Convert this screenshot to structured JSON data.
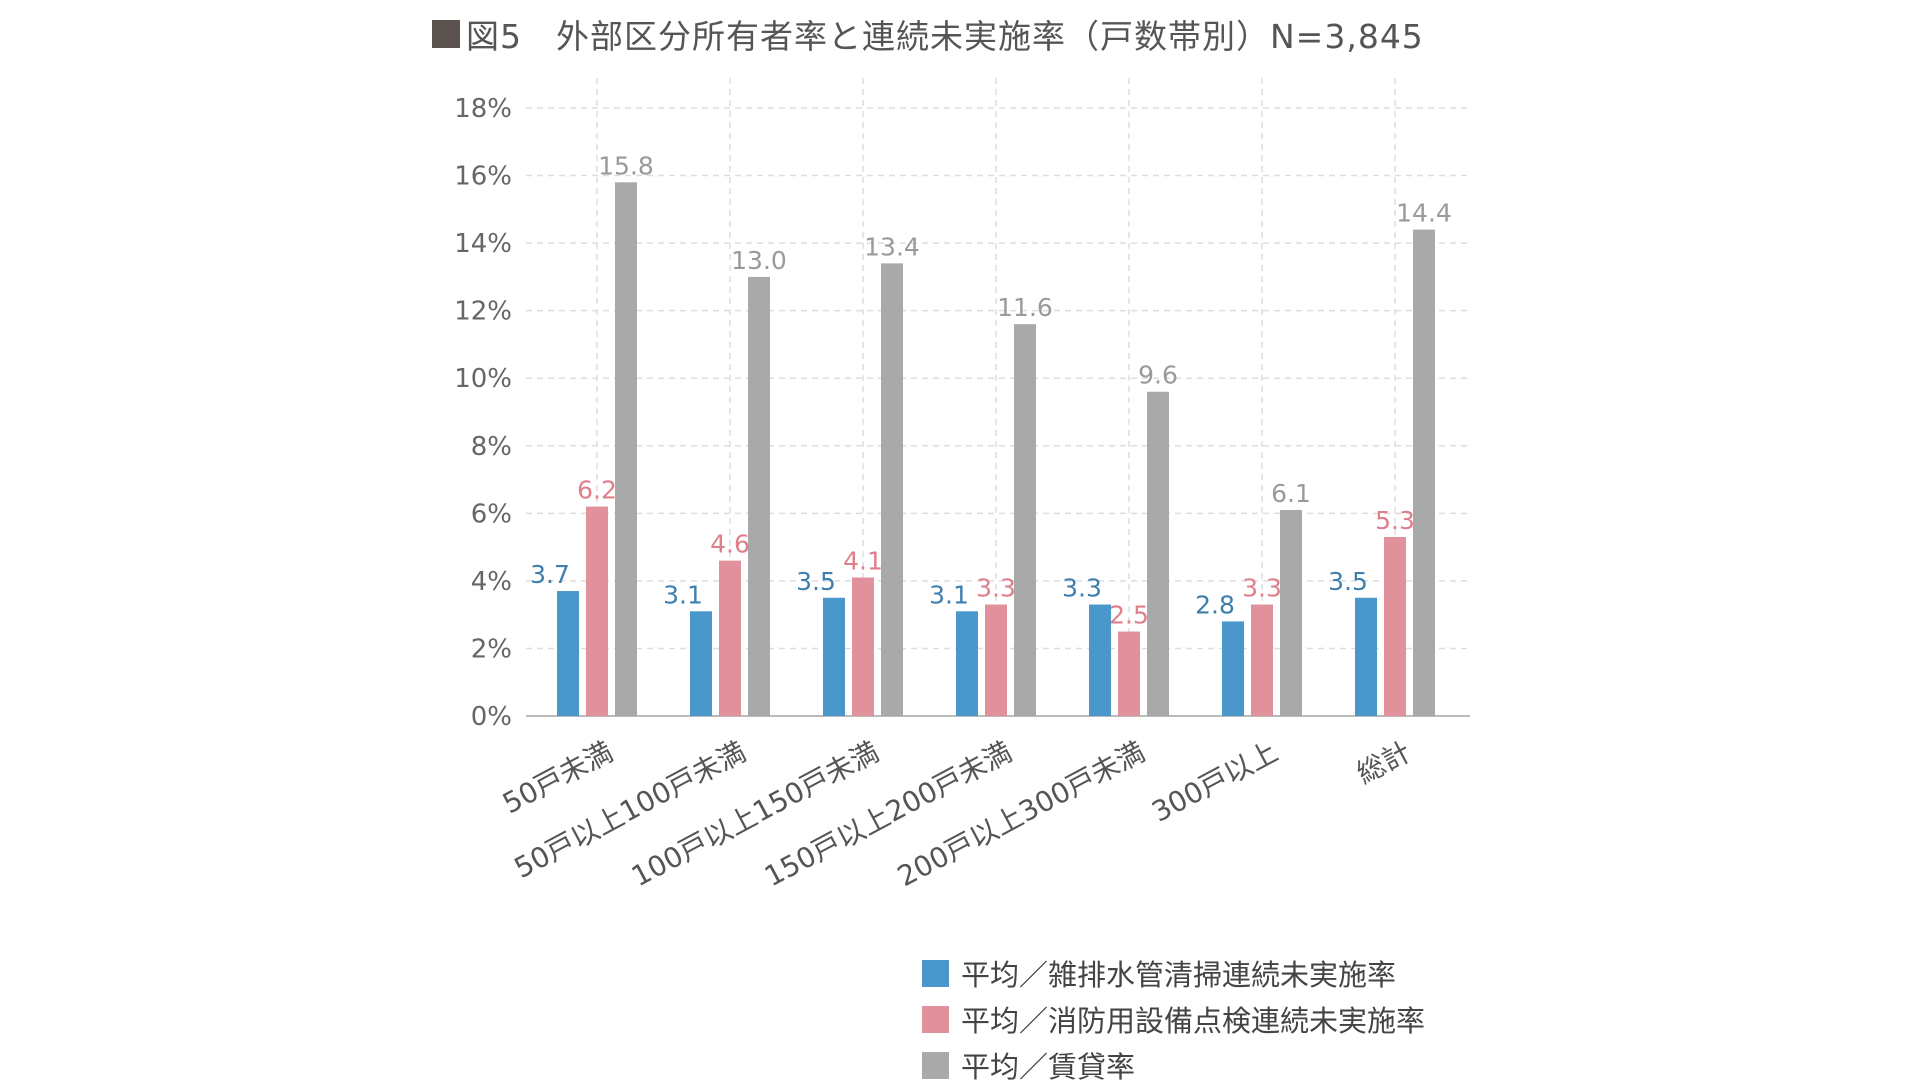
{
  "title_text": "図5　外部区分所有者率と連続未実施率（戸数帯別）N=3,845",
  "colors": {
    "series": [
      "#4a97cb",
      "#e0919c",
      "#a9a9a9"
    ],
    "label_text": [
      "#3f7fae",
      "#e07f8c",
      "#9a9a9a"
    ],
    "grid": "#dddddd",
    "axis": "#bbbbbb"
  },
  "chart_data": {
    "type": "bar",
    "title": "図5　外部区分所有者率と連続未実施率（戸数帯別）N=3,845",
    "categories": [
      "50戸未満",
      "50戸以上100戸未満",
      "100戸以上150戸未満",
      "150戸以上200戸未満",
      "200戸以上300戸未満",
      "300戸以上",
      "総計"
    ],
    "series": [
      {
        "name": "平均／雑排水管清掃連続未実施率",
        "values": [
          3.7,
          3.1,
          3.5,
          3.1,
          3.3,
          2.8,
          3.5
        ],
        "labels": [
          "3.7",
          "3.1",
          "3.5",
          "3.1",
          "3.3",
          "2.8",
          "3.5"
        ]
      },
      {
        "name": "平均／消防用設備点検連続未実施率",
        "values": [
          6.2,
          4.6,
          4.1,
          3.3,
          2.5,
          3.3,
          5.3
        ],
        "labels": [
          "6.2",
          "4.6",
          "4.1",
          "3.3",
          "2.5",
          "3.3",
          "5.3"
        ]
      },
      {
        "name": "平均／賃貸率",
        "values": [
          15.8,
          13.0,
          13.4,
          11.6,
          9.6,
          6.1,
          14.4
        ],
        "labels": [
          "15.8",
          "13.0",
          "13.4",
          "11.6",
          "9.6",
          "6.1",
          "14.4"
        ]
      }
    ],
    "yticks": [
      "0%",
      "2%",
      "4%",
      "6%",
      "8%",
      "10%",
      "12%",
      "14%",
      "16%",
      "18%"
    ],
    "ylim": [
      0,
      18
    ],
    "ylabel": "",
    "xlabel": "",
    "grid": true,
    "legend_position": "bottom-right"
  }
}
